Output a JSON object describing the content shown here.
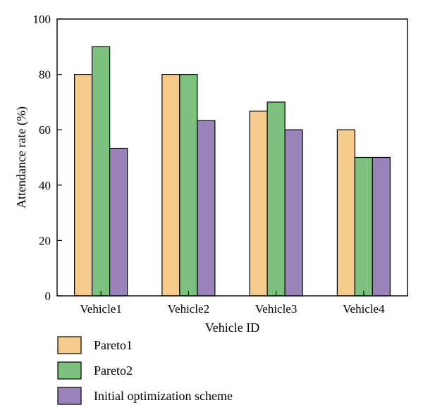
{
  "chart_data": {
    "type": "bar",
    "categories": [
      "Vehicle1",
      "Vehicle2",
      "Vehicle3",
      "Vehicle4"
    ],
    "series": [
      {
        "name": "Pareto1",
        "values": [
          80,
          80,
          66.7,
          60
        ],
        "color": "#F5CB8C"
      },
      {
        "name": "Pareto2",
        "values": [
          90,
          80,
          70,
          50
        ],
        "color": "#7DC17E"
      },
      {
        "name": "Initial optimization scheme",
        "values": [
          53.3,
          63.3,
          60,
          50
        ],
        "color": "#9A82BA"
      }
    ],
    "xlabel": "Vehicle ID",
    "ylabel": "Attendance rate (%)",
    "ylim": [
      0,
      100
    ],
    "yticks": [
      "0",
      "20",
      "40",
      "60",
      "80",
      "100"
    ],
    "grid": false,
    "legend_position": "bottom"
  }
}
